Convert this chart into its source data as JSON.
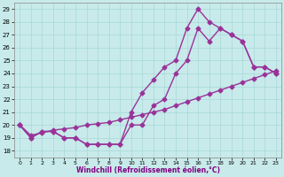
{
  "xlabel": "Windchill (Refroidissement éolien,°C)",
  "xlim": [
    -0.5,
    23.5
  ],
  "ylim": [
    17.5,
    29.5
  ],
  "xticks": [
    0,
    1,
    2,
    3,
    4,
    5,
    6,
    7,
    8,
    9,
    10,
    11,
    12,
    13,
    14,
    15,
    16,
    17,
    18,
    19,
    20,
    21,
    22,
    23
  ],
  "yticks": [
    18,
    19,
    20,
    21,
    22,
    23,
    24,
    25,
    26,
    27,
    28,
    29
  ],
  "bg_color": "#c8eaea",
  "grid_color": "#a8d8d8",
  "line_color": "#993399",
  "line1_x": [
    0,
    1,
    2,
    3,
    4,
    5,
    6,
    7,
    8,
    9,
    10,
    11,
    12,
    13,
    14,
    15,
    16,
    17,
    18,
    19,
    20,
    21,
    22,
    23
  ],
  "line1_y": [
    20,
    19,
    19.5,
    19.5,
    19,
    19,
    18.5,
    18.5,
    18.5,
    18.5,
    20,
    20,
    21.5,
    22,
    24,
    25,
    27.5,
    26.5,
    27.5,
    27,
    26.5,
    24.5,
    24.5,
    24
  ],
  "line2_x": [
    0,
    1,
    2,
    3,
    4,
    5,
    6,
    7,
    8,
    9,
    10,
    11,
    12,
    13,
    14,
    15,
    16,
    17,
    18,
    19,
    20,
    21,
    22,
    23
  ],
  "line2_y": [
    20,
    19,
    19.5,
    19.5,
    19,
    19,
    18.5,
    18.5,
    18.5,
    18.5,
    21,
    22.5,
    23.5,
    24.5,
    25,
    27.5,
    29,
    28,
    27.5,
    27,
    26.5,
    24.5,
    24.5,
    24
  ],
  "line3_x": [
    0,
    1,
    2,
    3,
    4,
    5,
    6,
    7,
    8,
    9,
    10,
    11,
    12,
    13,
    14,
    15,
    16,
    17,
    18,
    19,
    20,
    21,
    22,
    23
  ],
  "line3_y": [
    20,
    19.2,
    19.4,
    19.6,
    19.7,
    19.8,
    20.0,
    20.1,
    20.2,
    20.4,
    20.6,
    20.8,
    21.0,
    21.2,
    21.5,
    21.8,
    22.1,
    22.4,
    22.7,
    23.0,
    23.3,
    23.6,
    23.9,
    24.2
  ],
  "marker": "D",
  "markersize": 2.5,
  "linewidth": 1.0
}
